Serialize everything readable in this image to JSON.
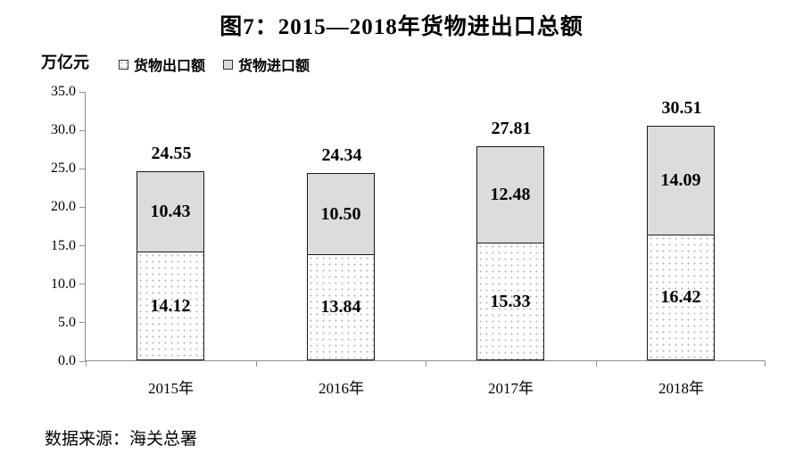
{
  "title": "图7：2015—2018年货物进出口总额",
  "unit_label": "万亿元",
  "source": "数据来源：海关总署",
  "colors": {
    "export_fill": "#ffffff",
    "export_dot": "#b0b0b0",
    "import_fill": "#dcdcdc",
    "bar_border": "#1a1a1a",
    "axis": "#909090",
    "text": "#000000"
  },
  "chart_data": {
    "type": "bar",
    "stacked": true,
    "title": "图7：2015—2018年货物进出口总额",
    "ylabel": "万亿元",
    "categories": [
      "2015年",
      "2016年",
      "2017年",
      "2018年"
    ],
    "series": [
      {
        "name": "货物出口额",
        "values": [
          14.12,
          13.84,
          15.33,
          16.42
        ]
      },
      {
        "name": "货物进口额",
        "values": [
          10.43,
          10.5,
          12.48,
          14.09
        ]
      }
    ],
    "totals": [
      24.55,
      24.34,
      27.81,
      30.51
    ],
    "ylim": [
      0,
      35
    ],
    "ytick_step": 5,
    "ytick_labels": [
      "0.0",
      "5.0",
      "10.0",
      "15.0",
      "20.0",
      "25.0",
      "30.0",
      "35.0"
    ],
    "grid": false,
    "legend_position": "top-left"
  }
}
